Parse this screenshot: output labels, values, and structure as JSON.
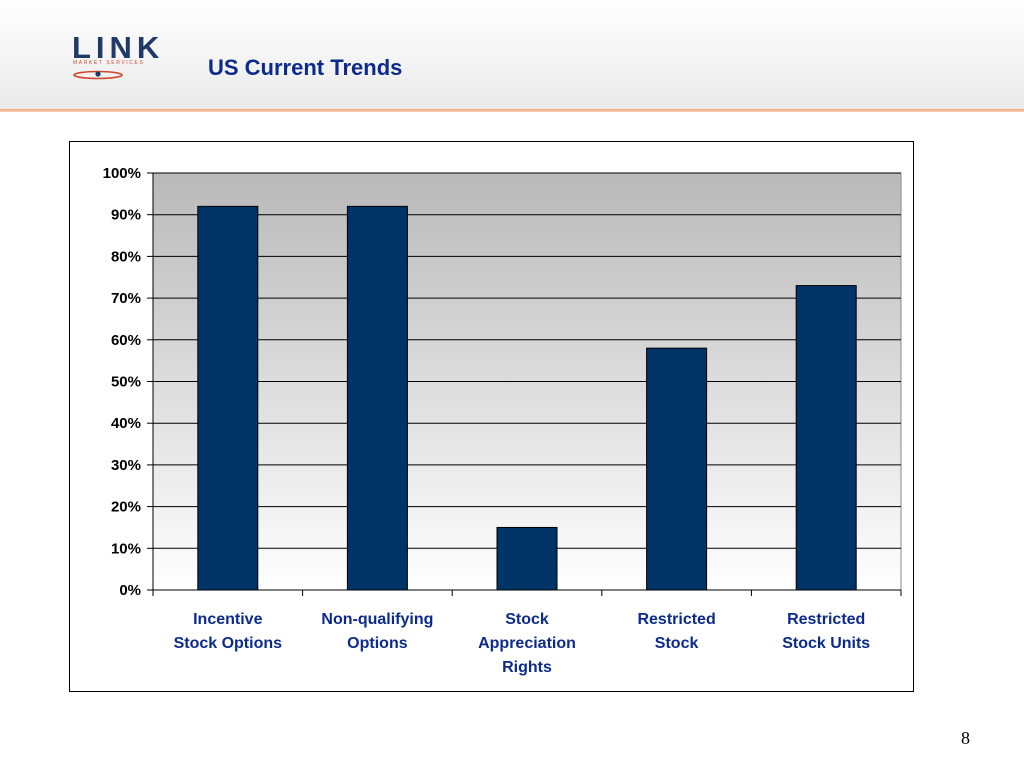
{
  "header": {
    "logo_word": "LINK",
    "logo_tagline": "MARKET SERVICES",
    "title": "US Current Trends"
  },
  "footer": {
    "page_number": "8"
  },
  "colors": {
    "bar_fill": "#003366",
    "title_blue": "#0c2a8c",
    "logo_navy": "#1f3a68",
    "logo_red": "#d0472e",
    "accent_rule": "#f0a27a"
  },
  "chart_data": {
    "type": "bar",
    "title": "",
    "xlabel": "",
    "ylabel": "",
    "categories": [
      "Incentive Stock Options",
      "Non-qualifying Options",
      "Stock Appreciation Rights",
      "Restricted Stock",
      "Restricted Stock Units"
    ],
    "category_lines": [
      [
        "Incentive",
        "Stock Options"
      ],
      [
        "Non-qualifying",
        "Options"
      ],
      [
        "Stock",
        "Appreciation",
        "Rights"
      ],
      [
        "Restricted",
        "Stock"
      ],
      [
        "Restricted",
        "Stock Units"
      ]
    ],
    "values": [
      92,
      92,
      15,
      58,
      73
    ],
    "ylim": [
      0,
      100
    ],
    "yticks": [
      0,
      10,
      20,
      30,
      40,
      50,
      60,
      70,
      80,
      90,
      100
    ],
    "ytick_labels": [
      "0%",
      "10%",
      "20%",
      "30%",
      "40%",
      "50%",
      "60%",
      "70%",
      "80%",
      "90%",
      "100%"
    ],
    "grid": true,
    "legend": "none"
  }
}
